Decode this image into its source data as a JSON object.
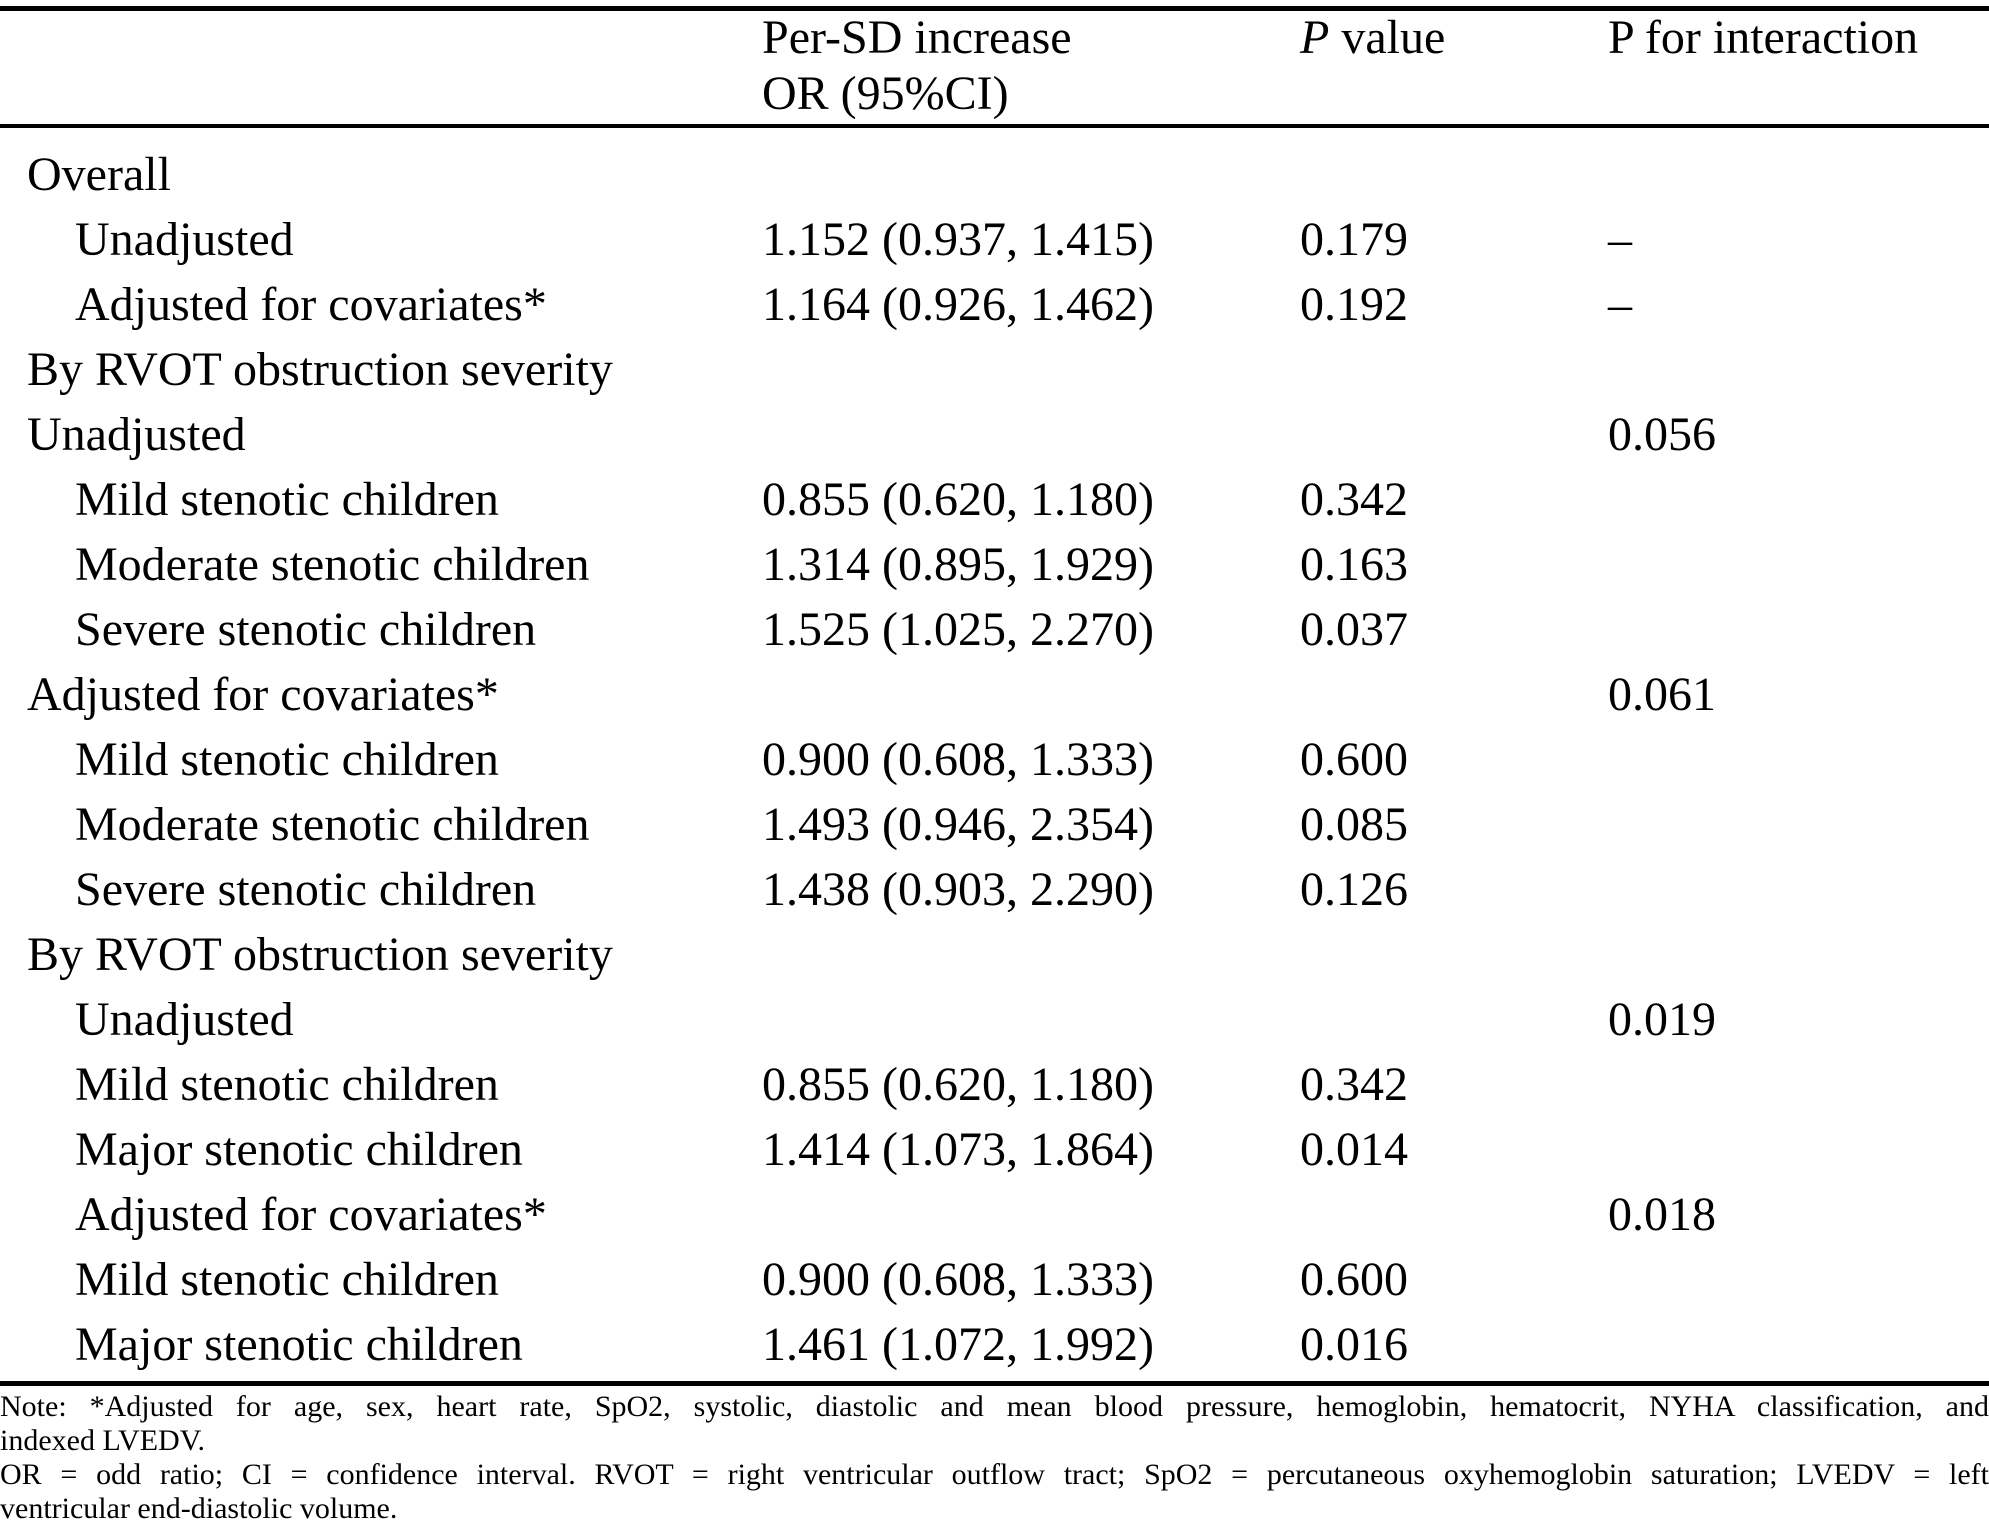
{
  "table": {
    "header": {
      "col2_line1": "Per-SD increase",
      "col2_line2": "OR (95%CI)",
      "col3_p": "P",
      "col3_rest": " value",
      "col4": "P for interaction"
    },
    "rows": [
      {
        "label": "Overall",
        "or_ci": "",
        "p": "",
        "p_int": ""
      },
      {
        "label": "Unadjusted",
        "or_ci": "1.152 (0.937, 1.415)",
        "p": "0.179",
        "p_int": "–"
      },
      {
        "label": "Adjusted for covariates*",
        "or_ci": "1.164 (0.926, 1.462)",
        "p": "0.192",
        "p_int": "–"
      },
      {
        "label": "By RVOT obstruction severity",
        "or_ci": "",
        "p": "",
        "p_int": ""
      },
      {
        "label": "Unadjusted",
        "or_ci": "",
        "p": "",
        "p_int": "0.056"
      },
      {
        "label": "Mild stenotic children",
        "or_ci": "0.855 (0.620, 1.180)",
        "p": "0.342",
        "p_int": ""
      },
      {
        "label": "Moderate stenotic children",
        "or_ci": "1.314 (0.895, 1.929)",
        "p": "0.163",
        "p_int": ""
      },
      {
        "label": "Severe stenotic children",
        "or_ci": "1.525 (1.025, 2.270)",
        "p": "0.037",
        "p_int": ""
      },
      {
        "label": "Adjusted for covariates*",
        "or_ci": "",
        "p": "",
        "p_int": "0.061"
      },
      {
        "label": "Mild stenotic children",
        "or_ci": "0.900 (0.608, 1.333)",
        "p": "0.600",
        "p_int": ""
      },
      {
        "label": "Moderate stenotic children",
        "or_ci": "1.493 (0.946, 2.354)",
        "p": "0.085",
        "p_int": ""
      },
      {
        "label": "Severe stenotic children",
        "or_ci": "1.438 (0.903, 2.290)",
        "p": "0.126",
        "p_int": ""
      },
      {
        "label": "By RVOT obstruction severity",
        "or_ci": "",
        "p": "",
        "p_int": ""
      },
      {
        "label": "Unadjusted",
        "or_ci": "",
        "p": "",
        "p_int": "0.019"
      },
      {
        "label": "Mild stenotic children",
        "or_ci": "0.855 (0.620, 1.180)",
        "p": "0.342",
        "p_int": ""
      },
      {
        "label": "Major stenotic children",
        "or_ci": "1.414 (1.073, 1.864)",
        "p": "0.014",
        "p_int": ""
      },
      {
        "label": "Adjusted for covariates*",
        "or_ci": "",
        "p": "",
        "p_int": "0.018"
      },
      {
        "label": "Mild stenotic children",
        "or_ci": "0.900 (0.608, 1.333)",
        "p": "0.600",
        "p_int": ""
      },
      {
        "label": "Major stenotic children",
        "or_ci": "1.461 (1.072, 1.992)",
        "p": "0.016",
        "p_int": ""
      }
    ],
    "footnotes": {
      "line1": "Note: *Adjusted for age, sex, heart rate, SpO2, systolic, diastolic and mean blood pressure, hemoglobin, hematocrit, NYHA classification, and",
      "line2": "indexed LVEDV.",
      "line3": "OR = odd ratio; CI = confidence interval. RVOT = right ventricular outflow tract; SpO2 = percutaneous oxyhemoglobin saturation; LVEDV = left",
      "line4": "ventricular end-diastolic volume."
    }
  },
  "colors": {
    "background": "#ffffff",
    "text": "#000000",
    "rule": "#000000"
  }
}
